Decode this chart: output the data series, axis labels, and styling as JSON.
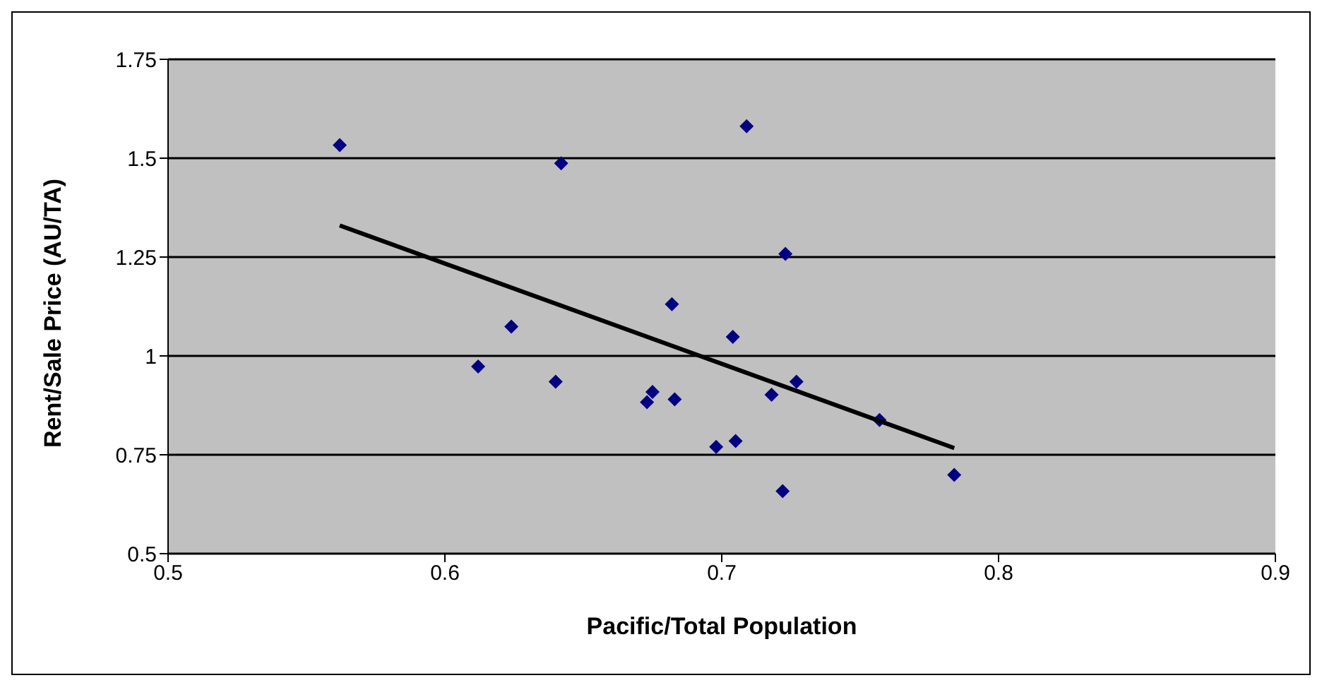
{
  "chart_data": {
    "type": "scatter",
    "xlabel": "Pacific/Total Population",
    "ylabel": "Rent/Sale Price (AU/TA)",
    "xlim": [
      0.5,
      0.9
    ],
    "xticks": [
      0.5,
      0.6,
      0.7,
      0.8,
      0.9
    ],
    "ylim": [
      0.5,
      1.75
    ],
    "yticks": [
      0.5,
      0.75,
      1,
      1.25,
      1.5,
      1.75
    ],
    "grid": "y",
    "marker": "diamond",
    "series": [
      {
        "color": "#000080",
        "x": [
          0.562,
          0.612,
          0.624,
          0.64,
          0.642,
          0.673,
          0.675,
          0.682,
          0.683,
          0.698,
          0.704,
          0.705,
          0.709,
          0.718,
          0.722,
          0.723,
          0.727,
          0.757,
          0.784
        ],
        "values": [
          1.533,
          0.973,
          1.074,
          0.935,
          1.487,
          0.883,
          0.909,
          1.131,
          0.89,
          0.77,
          1.048,
          0.785,
          1.581,
          0.902,
          0.658,
          1.258,
          0.935,
          0.838,
          0.699
        ]
      },
      {
        "type": "line",
        "marker": "none",
        "color": "#000000",
        "x": [
          0.562,
          0.784
        ],
        "values": [
          1.33,
          0.767
        ]
      }
    ]
  }
}
